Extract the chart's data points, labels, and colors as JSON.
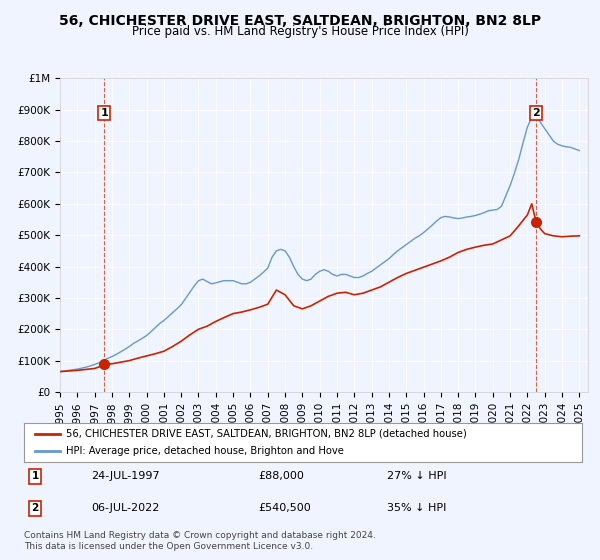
{
  "title": "56, CHICHESTER DRIVE EAST, SALTDEAN, BRIGHTON, BN2 8LP",
  "subtitle": "Price paid vs. HM Land Registry's House Price Index (HPI)",
  "background_color": "#f0f4ff",
  "plot_bg_color": "#f0f4ff",
  "hpi_color": "#6699cc",
  "price_color": "#cc2200",
  "marker1_date_x": 1997.56,
  "marker1_y": 88000,
  "marker2_date_x": 2022.51,
  "marker2_y": 540500,
  "marker1_label": "24-JUL-1997",
  "marker1_price": "£88,000",
  "marker1_hpi": "27% ↓ HPI",
  "marker2_label": "06-JUL-2022",
  "marker2_price": "£540,500",
  "marker2_hpi": "35% ↓ HPI",
  "legend_line1": "56, CHICHESTER DRIVE EAST, SALTDEAN, BRIGHTON, BN2 8LP (detached house)",
  "legend_line2": "HPI: Average price, detached house, Brighton and Hove",
  "footer_line1": "Contains HM Land Registry data © Crown copyright and database right 2024.",
  "footer_line2": "This data is licensed under the Open Government Licence v3.0.",
  "xmin": 1995.0,
  "xmax": 2025.5,
  "ymin": 0,
  "ymax": 1000000,
  "yticks": [
    0,
    100000,
    200000,
    300000,
    400000,
    500000,
    600000,
    700000,
    800000,
    900000,
    1000000
  ],
  "ytick_labels": [
    "£0",
    "£100K",
    "£200K",
    "£300K",
    "£400K",
    "£500K",
    "£600K",
    "£700K",
    "£800K",
    "£900K",
    "£1M"
  ],
  "xticks": [
    1995,
    1996,
    1997,
    1998,
    1999,
    2000,
    2001,
    2002,
    2003,
    2004,
    2005,
    2006,
    2007,
    2008,
    2009,
    2010,
    2011,
    2012,
    2013,
    2014,
    2015,
    2016,
    2017,
    2018,
    2019,
    2020,
    2021,
    2022,
    2023,
    2024,
    2025
  ],
  "hpi_x": [
    1995.0,
    1995.25,
    1995.5,
    1995.75,
    1996.0,
    1996.25,
    1996.5,
    1996.75,
    1997.0,
    1997.25,
    1997.5,
    1997.75,
    1998.0,
    1998.25,
    1998.5,
    1998.75,
    1999.0,
    1999.25,
    1999.5,
    1999.75,
    2000.0,
    2000.25,
    2000.5,
    2000.75,
    2001.0,
    2001.25,
    2001.5,
    2001.75,
    2002.0,
    2002.25,
    2002.5,
    2002.75,
    2003.0,
    2003.25,
    2003.5,
    2003.75,
    2004.0,
    2004.25,
    2004.5,
    2004.75,
    2005.0,
    2005.25,
    2005.5,
    2005.75,
    2006.0,
    2006.25,
    2006.5,
    2006.75,
    2007.0,
    2007.25,
    2007.5,
    2007.75,
    2008.0,
    2008.25,
    2008.5,
    2008.75,
    2009.0,
    2009.25,
    2009.5,
    2009.75,
    2010.0,
    2010.25,
    2010.5,
    2010.75,
    2011.0,
    2011.25,
    2011.5,
    2011.75,
    2012.0,
    2012.25,
    2012.5,
    2012.75,
    2013.0,
    2013.25,
    2013.5,
    2013.75,
    2014.0,
    2014.25,
    2014.5,
    2014.75,
    2015.0,
    2015.25,
    2015.5,
    2015.75,
    2016.0,
    2016.25,
    2016.5,
    2016.75,
    2017.0,
    2017.25,
    2017.5,
    2017.75,
    2018.0,
    2018.25,
    2018.5,
    2018.75,
    2019.0,
    2019.25,
    2019.5,
    2019.75,
    2020.0,
    2020.25,
    2020.5,
    2020.75,
    2021.0,
    2021.25,
    2021.5,
    2021.75,
    2022.0,
    2022.25,
    2022.5,
    2022.75,
    2023.0,
    2023.25,
    2023.5,
    2023.75,
    2024.0,
    2024.25,
    2024.5,
    2024.75,
    2025.0
  ],
  "hpi_y": [
    65000,
    67000,
    69000,
    71000,
    73000,
    76000,
    79000,
    83000,
    88000,
    93000,
    100000,
    107000,
    113000,
    120000,
    128000,
    136000,
    145000,
    155000,
    163000,
    171000,
    180000,
    192000,
    205000,
    218000,
    228000,
    240000,
    253000,
    265000,
    278000,
    298000,
    318000,
    338000,
    355000,
    360000,
    352000,
    345000,
    348000,
    352000,
    355000,
    355000,
    355000,
    350000,
    345000,
    345000,
    350000,
    360000,
    370000,
    382000,
    395000,
    430000,
    450000,
    455000,
    450000,
    430000,
    400000,
    375000,
    360000,
    355000,
    360000,
    375000,
    385000,
    390000,
    385000,
    375000,
    370000,
    375000,
    375000,
    370000,
    365000,
    365000,
    370000,
    378000,
    385000,
    395000,
    405000,
    415000,
    425000,
    438000,
    450000,
    460000,
    470000,
    480000,
    490000,
    498000,
    508000,
    520000,
    532000,
    545000,
    556000,
    560000,
    558000,
    555000,
    553000,
    555000,
    558000,
    560000,
    563000,
    567000,
    572000,
    578000,
    580000,
    582000,
    592000,
    625000,
    658000,
    698000,
    742000,
    795000,
    845000,
    875000,
    880000,
    860000,
    840000,
    820000,
    800000,
    790000,
    785000,
    782000,
    780000,
    775000,
    770000
  ],
  "price_x": [
    1995.0,
    1995.5,
    1996.0,
    1996.5,
    1997.0,
    1997.25,
    1997.5,
    1997.56,
    1997.75,
    1998.0,
    1998.5,
    1999.0,
    1999.5,
    2000.0,
    2000.5,
    2001.0,
    2001.5,
    2002.0,
    2002.5,
    2003.0,
    2003.5,
    2004.0,
    2004.5,
    2005.0,
    2005.5,
    2006.0,
    2006.5,
    2007.0,
    2007.5,
    2008.0,
    2008.5,
    2009.0,
    2009.5,
    2010.0,
    2010.5,
    2011.0,
    2011.5,
    2012.0,
    2012.5,
    2013.0,
    2013.5,
    2014.0,
    2014.5,
    2015.0,
    2015.5,
    2016.0,
    2016.5,
    2017.0,
    2017.5,
    2018.0,
    2018.5,
    2019.0,
    2019.5,
    2020.0,
    2020.5,
    2021.0,
    2021.5,
    2022.0,
    2022.25,
    2022.51,
    2022.75,
    2023.0,
    2023.5,
    2024.0,
    2024.5,
    2025.0
  ],
  "price_y": [
    65000,
    67000,
    69000,
    72000,
    75000,
    80000,
    84000,
    88000,
    88000,
    90000,
    95000,
    100000,
    108000,
    115000,
    122000,
    130000,
    145000,
    162000,
    182000,
    200000,
    210000,
    225000,
    238000,
    250000,
    255000,
    262000,
    270000,
    280000,
    325000,
    310000,
    275000,
    265000,
    275000,
    290000,
    305000,
    315000,
    318000,
    310000,
    315000,
    325000,
    335000,
    350000,
    365000,
    378000,
    388000,
    398000,
    408000,
    418000,
    430000,
    445000,
    455000,
    462000,
    468000,
    472000,
    485000,
    498000,
    530000,
    565000,
    600000,
    540500,
    520000,
    505000,
    498000,
    495000,
    497000,
    498000
  ]
}
